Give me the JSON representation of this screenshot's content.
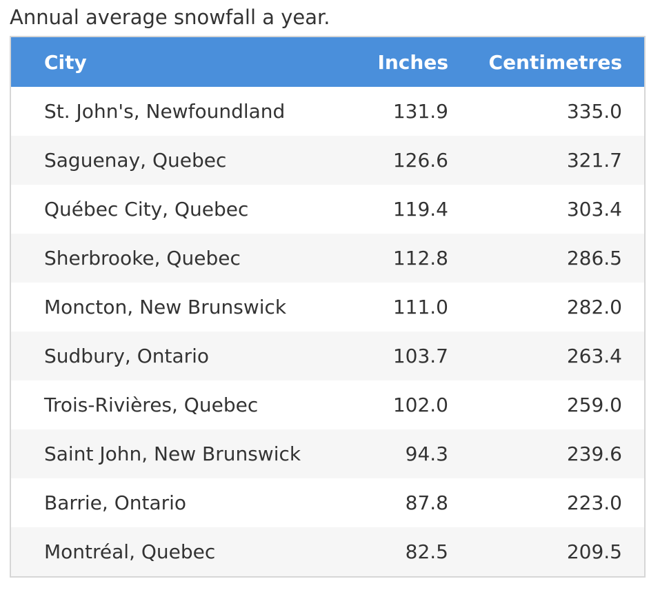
{
  "caption": "Annual average snowfall a year.",
  "table": {
    "header": [
      "City",
      "Inches",
      "Centimetres"
    ],
    "rows": [
      [
        "St. John's, Newfoundland",
        "131.9",
        "335.0"
      ],
      [
        "Saguenay, Quebec",
        "126.6",
        "321.7"
      ],
      [
        "Québec City, Quebec",
        "119.4",
        "303.4"
      ],
      [
        "Sherbrooke, Quebec",
        "112.8",
        "286.5"
      ],
      [
        "Moncton, New Brunswick",
        "111.0",
        "282.0"
      ],
      [
        "Sudbury, Ontario",
        "103.7",
        "263.4"
      ],
      [
        "Trois-Rivières, Quebec",
        "102.0",
        "259.0"
      ],
      [
        "Saint John, New Brunswick",
        "94.3",
        "239.6"
      ],
      [
        "Barrie, Ontario",
        "87.8",
        "223.0"
      ],
      [
        "Montréal, Quebec",
        "82.5",
        "209.5"
      ]
    ]
  }
}
